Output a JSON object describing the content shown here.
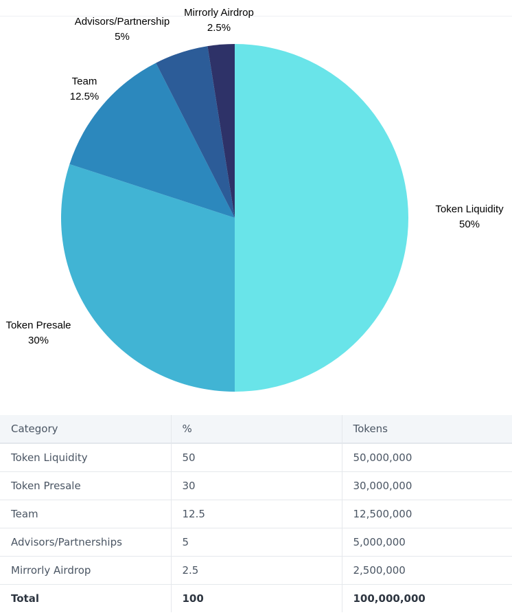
{
  "chart_data": {
    "type": "pie",
    "title": "",
    "slices": [
      {
        "label": "Token Liquidity",
        "value": 50,
        "pct_label": "50%",
        "color": "#69e4e9"
      },
      {
        "label": "Token Presale",
        "value": 30,
        "pct_label": "30%",
        "color": "#41b4d4"
      },
      {
        "label": "Team",
        "value": 12.5,
        "pct_label": "12.5%",
        "color": "#2c88bd"
      },
      {
        "label": "Advisors/Partnership",
        "value": 5,
        "pct_label": "5%",
        "color": "#2c5c98"
      },
      {
        "label": "Mirrorly Airdrop",
        "value": 2.5,
        "pct_label": "2.5%",
        "color": "#2e3268"
      }
    ]
  },
  "table": {
    "headers": [
      "Category",
      "%",
      "Tokens"
    ],
    "rows": [
      [
        "Token Liquidity",
        "50",
        "50,000,000"
      ],
      [
        "Token Presale",
        "30",
        "30,000,000"
      ],
      [
        "Team",
        "12.5",
        "12,500,000"
      ],
      [
        "Advisors/Partnerships",
        "5",
        "5,000,000"
      ],
      [
        "Mirrorly Airdrop",
        "2.5",
        "2,500,000"
      ]
    ],
    "total": [
      "Total",
      "100",
      "100,000,000"
    ]
  }
}
